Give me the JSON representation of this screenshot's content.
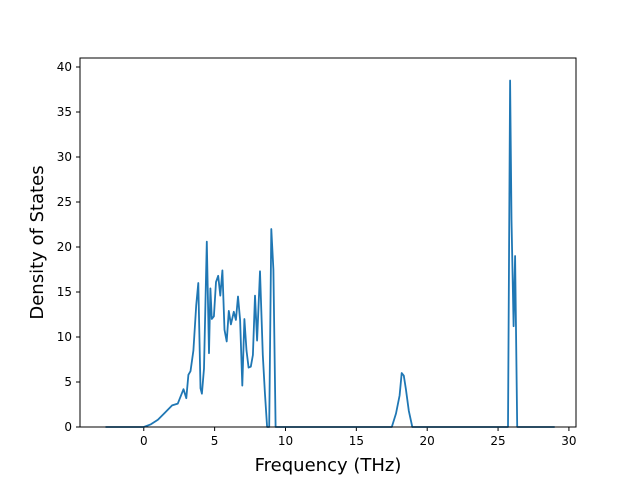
{
  "chart_data": {
    "type": "line",
    "title": "",
    "xlabel": "Frequency (THz)",
    "ylabel": "Density of States",
    "xlim": [
      -4.5,
      30.5
    ],
    "ylim": [
      0,
      41
    ],
    "xticks": [
      0,
      5,
      10,
      15,
      20,
      25,
      30
    ],
    "yticks": [
      0,
      5,
      10,
      15,
      20,
      25,
      30,
      35,
      40
    ],
    "grid": false,
    "legend": "none",
    "colors": {
      "line": "#1f77b4",
      "axes": "#000000",
      "background": "#ffffff"
    },
    "series": [
      {
        "x": [
          -2.7,
          -1.0,
          0.0,
          0.5,
          1.0,
          1.5,
          2.0,
          2.4,
          2.8,
          3.0,
          3.15,
          3.3,
          3.5,
          3.7,
          3.85,
          4.0,
          4.1,
          4.25,
          4.45,
          4.6,
          4.7,
          4.8,
          4.95,
          5.1,
          5.25,
          5.4,
          5.55,
          5.7,
          5.85,
          6.0,
          6.15,
          6.35,
          6.5,
          6.65,
          6.8,
          6.95,
          7.1,
          7.25,
          7.4,
          7.55,
          7.7,
          7.85,
          8.0,
          8.2,
          8.4,
          8.55,
          8.7,
          8.85,
          9.0,
          9.15,
          9.3,
          9.45,
          9.6,
          9.7,
          9.8,
          10.5,
          12.0,
          15.0,
          17.5,
          17.8,
          18.05,
          18.2,
          18.35,
          18.5,
          18.7,
          18.95,
          20.0,
          22.5,
          25.3,
          25.7,
          25.85,
          25.95,
          26.1,
          26.2,
          26.35,
          26.45,
          26.6,
          27.5,
          29.0
        ],
        "y": [
          0,
          0,
          0,
          0.3,
          0.8,
          1.6,
          2.4,
          2.6,
          4.2,
          3.2,
          5.8,
          6.2,
          8.5,
          13.5,
          16.0,
          4.3,
          3.7,
          6.5,
          20.6,
          8.2,
          15.4,
          12.0,
          12.3,
          16.1,
          16.8,
          14.6,
          17.4,
          10.8,
          9.5,
          12.9,
          11.4,
          12.8,
          11.9,
          14.5,
          11.9,
          4.6,
          12.0,
          8.5,
          6.6,
          6.7,
          8.0,
          14.6,
          9.6,
          17.3,
          8.0,
          3.8,
          0,
          0,
          22.0,
          17.5,
          0,
          0,
          0,
          0,
          0,
          0,
          0,
          0,
          0,
          1.5,
          3.5,
          6.0,
          5.7,
          4.2,
          1.8,
          0,
          0,
          0,
          0,
          0,
          38.5,
          23.0,
          11.2,
          19.0,
          0,
          0,
          0,
          0,
          0
        ]
      }
    ]
  }
}
